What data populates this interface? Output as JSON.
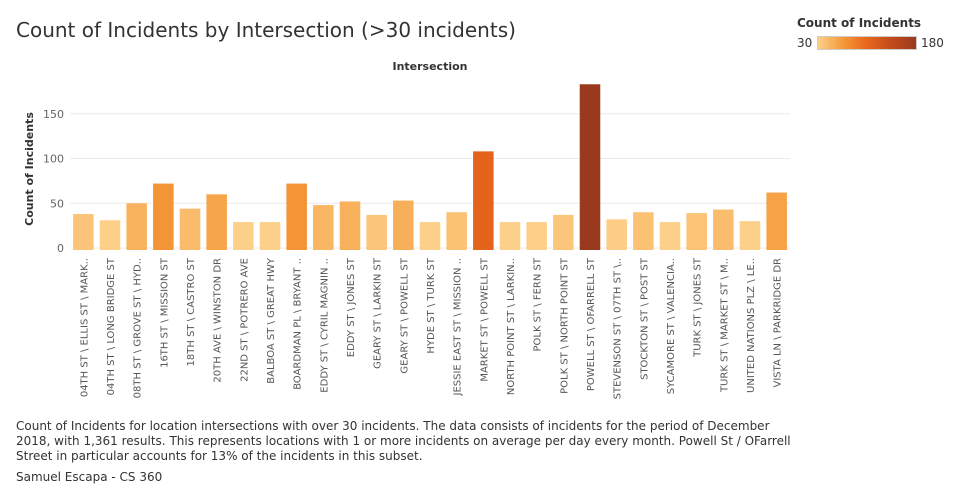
{
  "chart_data": {
    "type": "bar",
    "title": "Count of Incidents by Intersection (>30 incidents)",
    "xlabel": "Intersection",
    "ylabel": "Count of Incidents",
    "ylim": [
      0,
      190
    ],
    "yticks": [
      0,
      50,
      100,
      150
    ],
    "grid": true,
    "legend": {
      "title": "Count of Incidents",
      "min_label": "30",
      "max_label": "180",
      "min": 30,
      "max": 180,
      "colors": [
        "#fdd089",
        "#f59a3a",
        "#e8661c",
        "#c24b1c",
        "#993a1e"
      ],
      "placement": "top-right"
    },
    "categories": [
      "04TH ST \\ ELLIS ST \\ MARK..",
      "04TH ST \\ LONG BRIDGE ST",
      "08TH ST \\ GROVE ST \\ HYD..",
      "16TH ST \\ MISSION ST",
      "18TH ST \\ CASTRO ST",
      "20TH AVE \\ WINSTON DR",
      "22ND ST \\ POTRERO AVE",
      "BALBOA ST \\ GREAT HWY",
      "BOARDMAN PL \\ BRYANT ..",
      "EDDY ST \\ CYRIL MAGNIN ..",
      "EDDY ST \\ JONES ST",
      "GEARY ST \\ LARKIN ST",
      "GEARY ST \\ POWELL ST",
      "HYDE ST \\ TURK ST",
      "JESSIE EAST ST \\ MISSION ..",
      "MARKET ST \\ POWELL ST",
      "NORTH POINT ST \\ LARKIN..",
      "POLK ST \\ FERN ST",
      "POLK ST \\ NORTH POINT ST",
      "POWELL ST \\ OFARRELL ST",
      "STEVENSON ST \\ 07TH ST \\..",
      "STOCKTON ST \\ POST ST",
      "SYCAMORE ST \\ VALENCIA..",
      "TURK ST \\ JONES ST",
      "TURK ST \\ MARKET ST \\ M..",
      "UNITED NATIONS PLZ \\ LE..",
      "VISTA LN \\ PARKRIDGE DR"
    ],
    "values": [
      38,
      31,
      50,
      72,
      44,
      60,
      29,
      29,
      72,
      48,
      52,
      37,
      53,
      29,
      40,
      108,
      29,
      29,
      37,
      183,
      32,
      40,
      29,
      39,
      43,
      30,
      62
    ]
  },
  "caption": "Count of Incidents for location intersections with over 30 incidents. The data consists of incidents for the period of December 2018, with 1,361 results. This represents locations with 1 or more incidents on average per day every month. Powell St / OFarrell Street in particular accounts for 13% of the incidents in this subset.",
  "credit": "Samuel Escapa - CS 360"
}
